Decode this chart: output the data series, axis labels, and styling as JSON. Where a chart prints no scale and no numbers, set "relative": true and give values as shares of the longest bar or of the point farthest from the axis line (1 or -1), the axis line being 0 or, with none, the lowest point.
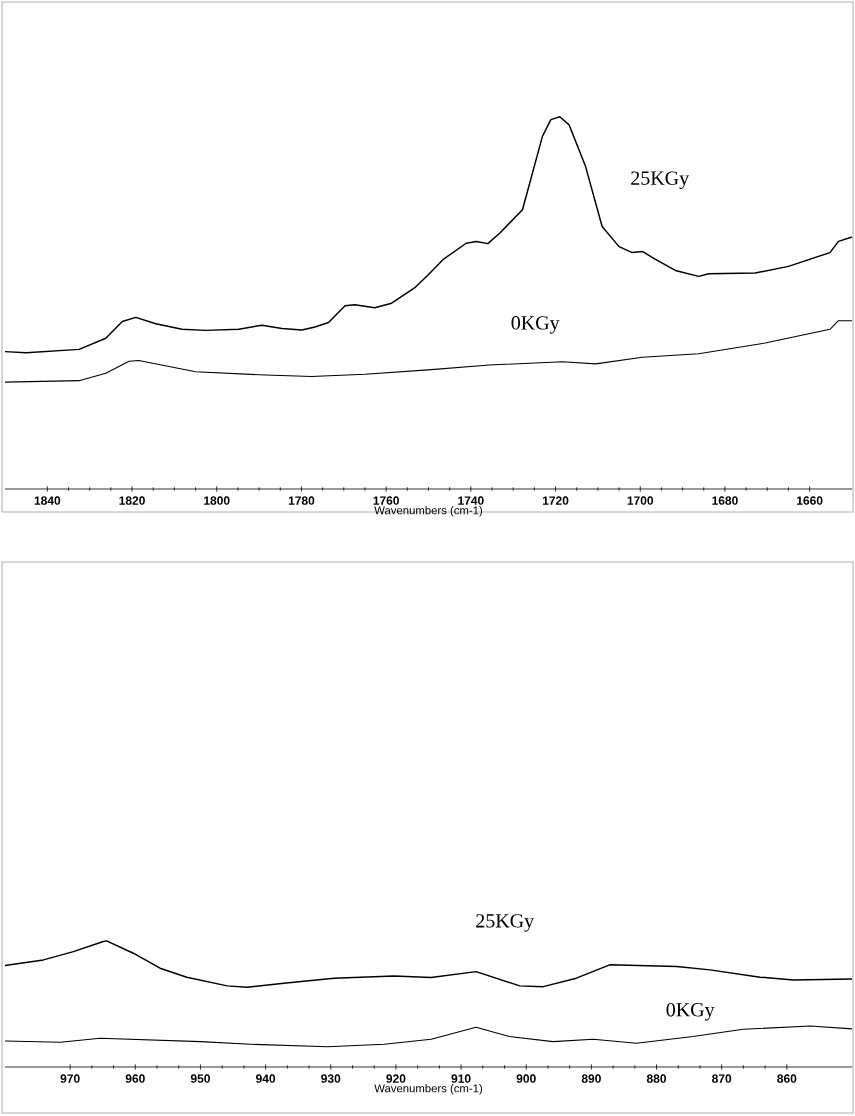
{
  "chart_data": [
    {
      "type": "line",
      "relative": true,
      "xlabel": "Wavenumbers (cm-1)",
      "xlim": [
        1850,
        1650
      ],
      "xticks": [
        1840,
        1820,
        1800,
        1780,
        1760,
        1740,
        1720,
        1700,
        1680,
        1660
      ],
      "series": [
        {
          "name": "25KGy",
          "color": "#000000",
          "x": [
            1850,
            1845,
            1832.5,
            1826.2,
            1822.3,
            1819.1,
            1814.4,
            1808.2,
            1802.7,
            1794.8,
            1789.3,
            1784.6,
            1779.9,
            1776.8,
            1773.6,
            1769.7,
            1767.4,
            1762.7,
            1758.7,
            1753.3,
            1750.1,
            1746.6,
            1741.1,
            1738.7,
            1736,
            1733.2,
            1727.8,
            1723.1,
            1721.1,
            1719,
            1716.8,
            1712.9,
            1709,
            1705,
            1701.9,
            1699.5,
            1696.4,
            1691.7,
            1686.2,
            1683.8,
            1672.9,
            1665,
            1655.2,
            1653.2,
            1650
          ],
          "values": [
            0.369,
            0.366,
            0.375,
            0.405,
            0.45,
            0.461,
            0.444,
            0.429,
            0.426,
            0.429,
            0.44,
            0.431,
            0.427,
            0.435,
            0.447,
            0.492,
            0.495,
            0.487,
            0.499,
            0.54,
            0.575,
            0.616,
            0.66,
            0.665,
            0.659,
            0.687,
            0.75,
            0.947,
            0.992,
            1.0,
            0.978,
            0.866,
            0.705,
            0.651,
            0.635,
            0.638,
            0.617,
            0.587,
            0.571,
            0.578,
            0.58,
            0.598,
            0.635,
            0.665,
            0.677
          ]
        },
        {
          "name": "0KGy",
          "color": "#000000",
          "x": [
            1850,
            1832.5,
            1826.2,
            1820.7,
            1818.4,
            1805,
            1788.5,
            1777.6,
            1765,
            1750.1,
            1735.6,
            1718.4,
            1710.5,
            1699.5,
            1686.2,
            1670.5,
            1655.2,
            1653.2,
            1650
          ],
          "values": [
            0.287,
            0.291,
            0.311,
            0.343,
            0.345,
            0.315,
            0.306,
            0.302,
            0.308,
            0.32,
            0.333,
            0.342,
            0.336,
            0.354,
            0.363,
            0.392,
            0.429,
            0.452,
            0.452
          ]
        }
      ]
    },
    {
      "type": "line",
      "relative": true,
      "xlabel": "Wavenumbers (cm-1)",
      "xlim": [
        980,
        850
      ],
      "xticks": [
        970,
        960,
        950,
        940,
        930,
        920,
        910,
        900,
        890,
        880,
        870,
        860
      ],
      "series": [
        {
          "name": "25KGy",
          "color": "#000000",
          "x": [
            980,
            974.1,
            969.5,
            964.9,
            964.4,
            960.3,
            956.2,
            952.1,
            945.9,
            942.8,
            937.2,
            929.5,
            920.3,
            914.6,
            907.7,
            901,
            897.4,
            892.3,
            887.2,
            876.9,
            871.8,
            864.1,
            859,
            850
          ],
          "values": [
            0.804,
            0.849,
            0.915,
            0.995,
            1.0,
            0.902,
            0.783,
            0.712,
            0.643,
            0.632,
            0.664,
            0.704,
            0.722,
            0.709,
            0.756,
            0.643,
            0.637,
            0.704,
            0.81,
            0.796,
            0.77,
            0.712,
            0.69,
            0.698
          ]
        },
        {
          "name": "0KGy",
          "color": "#000000",
          "x": [
            980,
            971.5,
            965.4,
            950,
            942.3,
            930.5,
            921.8,
            914.6,
            907.7,
            902.6,
            895.9,
            889.7,
            883.1,
            874.4,
            866.7,
            856.4,
            850
          ],
          "values": [
            0.206,
            0.196,
            0.228,
            0.201,
            0.18,
            0.161,
            0.18,
            0.22,
            0.315,
            0.241,
            0.201,
            0.22,
            0.188,
            0.241,
            0.299,
            0.325,
            0.302
          ]
        }
      ]
    }
  ]
}
